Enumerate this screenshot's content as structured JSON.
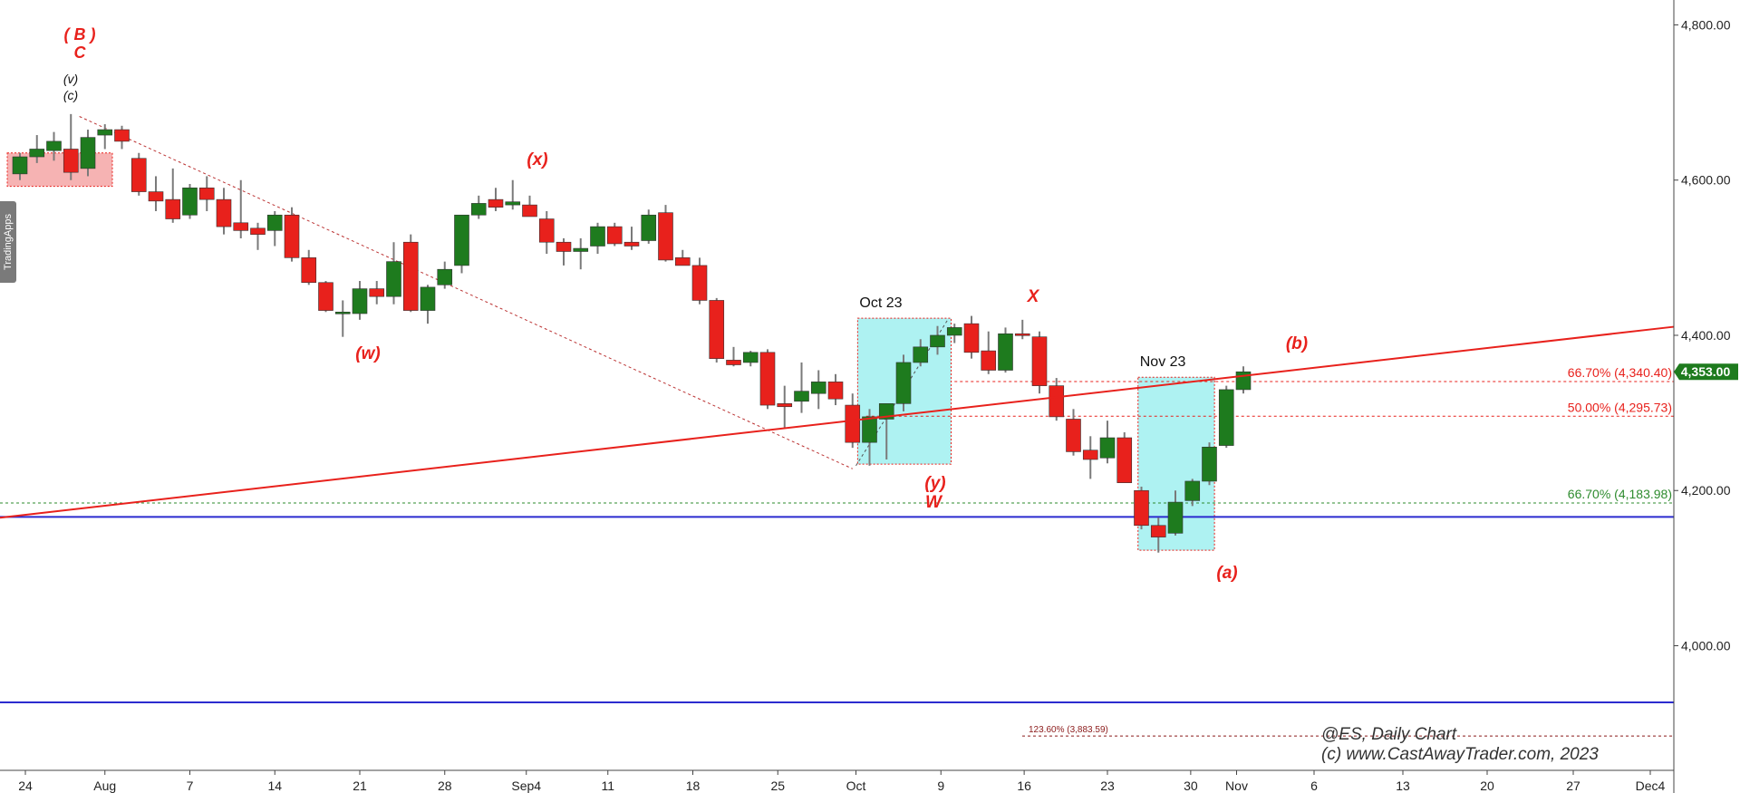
{
  "side_tab": "TradingApps",
  "watermark": {
    "line1": "@ES,   Daily Chart",
    "line2": "(c) www.CastAwayTrader.com, 2023"
  },
  "colors": {
    "up": "#1e7b1e",
    "down": "#e8211c",
    "trend": "#e8211c",
    "support": "#2b2bcf",
    "box": "#aef2f2",
    "fib_red": "#e8211c",
    "fib_green": "#2e8b2e",
    "price_tag": "#1e7b1e"
  },
  "chart_data": {
    "type": "candlestick",
    "symbol": "@ES",
    "timeframe": "Daily",
    "x_ticks": [
      "24",
      "Aug",
      "7",
      "14",
      "21",
      "28",
      "Sep4",
      "11",
      "18",
      "25",
      "Oct",
      "9",
      "16",
      "23",
      "30",
      "Nov",
      "6",
      "13",
      "20",
      "27",
      "Dec4"
    ],
    "y_ticks": [
      "4,000.00",
      "4,200.00",
      "4,400.00",
      "4,600.00",
      "4,800.00"
    ],
    "y_tick_values": [
      4000,
      4200,
      4400,
      4600,
      4800
    ],
    "ylim": [
      3860,
      4830
    ],
    "last_price": "4,353.00",
    "last_price_value": 4353,
    "candles": [
      {
        "o": 4608,
        "h": 4635,
        "l": 4600,
        "c": 4630
      },
      {
        "o": 4630,
        "h": 4658,
        "l": 4622,
        "c": 4640
      },
      {
        "o": 4638,
        "h": 4662,
        "l": 4625,
        "c": 4650
      },
      {
        "o": 4640,
        "h": 4685,
        "l": 4600,
        "c": 4610
      },
      {
        "o": 4615,
        "h": 4665,
        "l": 4605,
        "c": 4655
      },
      {
        "o": 4658,
        "h": 4672,
        "l": 4640,
        "c": 4665
      },
      {
        "o": 4665,
        "h": 4670,
        "l": 4640,
        "c": 4650
      },
      {
        "o": 4628,
        "h": 4635,
        "l": 4580,
        "c": 4585
      },
      {
        "o": 4585,
        "h": 4605,
        "l": 4560,
        "c": 4573
      },
      {
        "o": 4575,
        "h": 4615,
        "l": 4545,
        "c": 4550
      },
      {
        "o": 4555,
        "h": 4595,
        "l": 4550,
        "c": 4590
      },
      {
        "o": 4590,
        "h": 4605,
        "l": 4560,
        "c": 4575
      },
      {
        "o": 4575,
        "h": 4590,
        "l": 4530,
        "c": 4540
      },
      {
        "o": 4545,
        "h": 4600,
        "l": 4525,
        "c": 4535
      },
      {
        "o": 4538,
        "h": 4545,
        "l": 4510,
        "c": 4530
      },
      {
        "o": 4535,
        "h": 4560,
        "l": 4515,
        "c": 4555
      },
      {
        "o": 4555,
        "h": 4565,
        "l": 4495,
        "c": 4500
      },
      {
        "o": 4500,
        "h": 4510,
        "l": 4465,
        "c": 4468
      },
      {
        "o": 4468,
        "h": 4470,
        "l": 4430,
        "c": 4432
      },
      {
        "o": 4428,
        "h": 4445,
        "l": 4398,
        "c": 4430
      },
      {
        "o": 4428,
        "h": 4470,
        "l": 4420,
        "c": 4460
      },
      {
        "o": 4460,
        "h": 4470,
        "l": 4440,
        "c": 4450
      },
      {
        "o": 4450,
        "h": 4520,
        "l": 4440,
        "c": 4495
      },
      {
        "o": 4520,
        "h": 4530,
        "l": 4430,
        "c": 4432
      },
      {
        "o": 4432,
        "h": 4465,
        "l": 4415,
        "c": 4462
      },
      {
        "o": 4465,
        "h": 4495,
        "l": 4460,
        "c": 4485
      },
      {
        "o": 4490,
        "h": 4555,
        "l": 4480,
        "c": 4555
      },
      {
        "o": 4555,
        "h": 4580,
        "l": 4550,
        "c": 4570
      },
      {
        "o": 4575,
        "h": 4590,
        "l": 4560,
        "c": 4565
      },
      {
        "o": 4568,
        "h": 4600,
        "l": 4562,
        "c": 4572
      },
      {
        "o": 4568,
        "h": 4580,
        "l": 4555,
        "c": 4553
      },
      {
        "o": 4550,
        "h": 4560,
        "l": 4505,
        "c": 4520
      },
      {
        "o": 4520,
        "h": 4525,
        "l": 4490,
        "c": 4508
      },
      {
        "o": 4508,
        "h": 4525,
        "l": 4485,
        "c": 4512
      },
      {
        "o": 4515,
        "h": 4545,
        "l": 4505,
        "c": 4540
      },
      {
        "o": 4540,
        "h": 4545,
        "l": 4515,
        "c": 4518
      },
      {
        "o": 4520,
        "h": 4540,
        "l": 4510,
        "c": 4515
      },
      {
        "o": 4522,
        "h": 4562,
        "l": 4518,
        "c": 4555
      },
      {
        "o": 4558,
        "h": 4568,
        "l": 4495,
        "c": 4497
      },
      {
        "o": 4500,
        "h": 4510,
        "l": 4490,
        "c": 4490
      },
      {
        "o": 4490,
        "h": 4500,
        "l": 4440,
        "c": 4445
      },
      {
        "o": 4445,
        "h": 4448,
        "l": 4365,
        "c": 4370
      },
      {
        "o": 4368,
        "h": 4385,
        "l": 4360,
        "c": 4362
      },
      {
        "o": 4365,
        "h": 4380,
        "l": 4360,
        "c": 4378
      },
      {
        "o": 4378,
        "h": 4382,
        "l": 4305,
        "c": 4310
      },
      {
        "o": 4312,
        "h": 4335,
        "l": 4280,
        "c": 4308
      },
      {
        "o": 4315,
        "h": 4365,
        "l": 4300,
        "c": 4328
      },
      {
        "o": 4325,
        "h": 4355,
        "l": 4305,
        "c": 4340
      },
      {
        "o": 4340,
        "h": 4350,
        "l": 4310,
        "c": 4318
      },
      {
        "o": 4310,
        "h": 4325,
        "l": 4255,
        "c": 4262
      },
      {
        "o": 4262,
        "h": 4305,
        "l": 4232,
        "c": 4295
      },
      {
        "o": 4292,
        "h": 4312,
        "l": 4240,
        "c": 4312
      },
      {
        "o": 4312,
        "h": 4375,
        "l": 4302,
        "c": 4365
      },
      {
        "o": 4365,
        "h": 4395,
        "l": 4360,
        "c": 4385
      },
      {
        "o": 4385,
        "h": 4412,
        "l": 4375,
        "c": 4400
      },
      {
        "o": 4400,
        "h": 4415,
        "l": 4390,
        "c": 4410
      },
      {
        "o": 4415,
        "h": 4425,
        "l": 4370,
        "c": 4378
      },
      {
        "o": 4380,
        "h": 4405,
        "l": 4350,
        "c": 4355
      },
      {
        "o": 4355,
        "h": 4410,
        "l": 4352,
        "c": 4402
      },
      {
        "o": 4402,
        "h": 4420,
        "l": 4395,
        "c": 4400
      },
      {
        "o": 4398,
        "h": 4405,
        "l": 4325,
        "c": 4335
      },
      {
        "o": 4335,
        "h": 4345,
        "l": 4290,
        "c": 4295
      },
      {
        "o": 4292,
        "h": 4305,
        "l": 4245,
        "c": 4250
      },
      {
        "o": 4252,
        "h": 4270,
        "l": 4215,
        "c": 4240
      },
      {
        "o": 4242,
        "h": 4290,
        "l": 4235,
        "c": 4268
      },
      {
        "o": 4268,
        "h": 4275,
        "l": 4210,
        "c": 4210
      },
      {
        "o": 4200,
        "h": 4205,
        "l": 4150,
        "c": 4155
      },
      {
        "o": 4155,
        "h": 4165,
        "l": 4120,
        "c": 4140
      },
      {
        "o": 4145,
        "h": 4200,
        "l": 4142,
        "c": 4185
      },
      {
        "o": 4187,
        "h": 4215,
        "l": 4180,
        "c": 4212
      },
      {
        "o": 4212,
        "h": 4262,
        "l": 4207,
        "c": 4256
      },
      {
        "o": 4258,
        "h": 4335,
        "l": 4255,
        "c": 4330
      },
      {
        "o": 4330,
        "h": 4360,
        "l": 4325,
        "c": 4353
      }
    ],
    "trend_line": {
      "from": [
        0,
        4165
      ],
      "to": [
        101.5,
        4411
      ]
    },
    "descending_line": {
      "from": [
        3.5,
        4682
      ],
      "to": [
        49,
        4228
      ]
    },
    "horizontal_lines": [
      4166,
      3927
    ],
    "fib_levels": [
      {
        "label": "66.70% (4,340.40)",
        "value": 4340.4,
        "color": "red"
      },
      {
        "label": "50.00% (4,295.73)",
        "value": 4295.73,
        "color": "red"
      },
      {
        "label": "66.70% (4,183.98)",
        "value": 4183.98,
        "color": "green"
      },
      {
        "label": "123.60% (3,883.59)",
        "value": 3883.59,
        "color": "darkred"
      }
    ],
    "boxes": [
      {
        "label": "Oct 23",
        "x0": 49.3,
        "x1": 54.8,
        "y0": 4234,
        "y1": 4422
      },
      {
        "label": "Nov 23",
        "x0": 65.8,
        "x1": 70.3,
        "y0": 4123,
        "y1": 4346
      }
    ],
    "annotations": [
      {
        "text": "( B )",
        "color": "red"
      },
      {
        "text": "C",
        "color": "red"
      },
      {
        "text": "(v)",
        "color": "black"
      },
      {
        "text": "(c)",
        "color": "black"
      },
      {
        "text": "(w)",
        "color": "red"
      },
      {
        "text": "(x)",
        "color": "red"
      },
      {
        "text": "X",
        "color": "red"
      },
      {
        "text": "(y)",
        "color": "red"
      },
      {
        "text": "W",
        "color": "red"
      },
      {
        "text": "(a)",
        "color": "red"
      },
      {
        "text": "(b)",
        "color": "red"
      }
    ]
  }
}
